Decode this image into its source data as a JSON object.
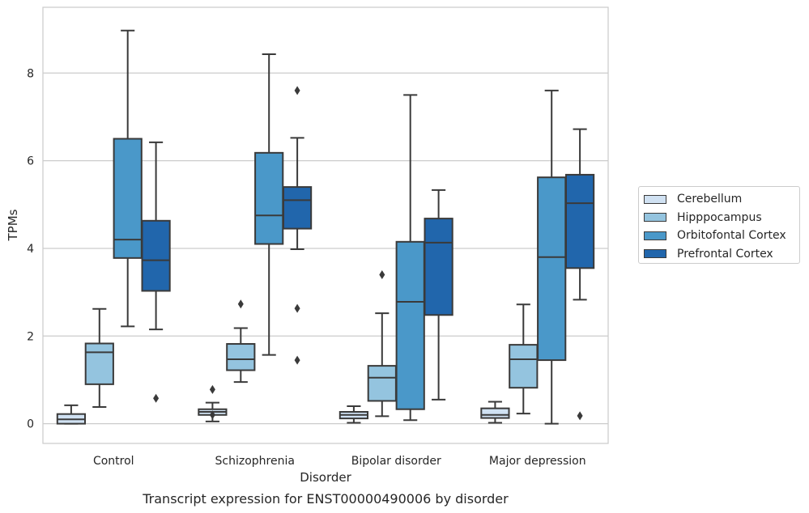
{
  "caption": "Transcript expression for ENST00000490006 by disorder",
  "chart_data": {
    "type": "box",
    "xlabel": "Disorder",
    "ylabel": "TPMs",
    "ylim": [
      -0.45,
      9.5
    ],
    "yticks": [
      0,
      2,
      4,
      6,
      8
    ],
    "grid": "horizontal",
    "legend_position": "right",
    "categories": [
      "Control",
      "Schizophrenia",
      "Bipolar disorder",
      "Major depression"
    ],
    "series": [
      {
        "name": "Cerebellum",
        "color": "#d0e1f2",
        "boxes": [
          {
            "whisker_low": 0.0,
            "q1": 0.0,
            "median": 0.1,
            "q3": 0.22,
            "whisker_high": 0.42,
            "outliers": []
          },
          {
            "whisker_low": 0.05,
            "q1": 0.2,
            "median": 0.27,
            "q3": 0.33,
            "whisker_high": 0.48,
            "outliers": [
              0.78,
              0.2
            ]
          },
          {
            "whisker_low": 0.02,
            "q1": 0.12,
            "median": 0.2,
            "q3": 0.27,
            "whisker_high": 0.4,
            "outliers": []
          },
          {
            "whisker_low": 0.02,
            "q1": 0.13,
            "median": 0.2,
            "q3": 0.35,
            "whisker_high": 0.5,
            "outliers": []
          }
        ]
      },
      {
        "name": "Hipppocampus",
        "color": "#94c4df",
        "boxes": [
          {
            "whisker_low": 0.38,
            "q1": 0.9,
            "median": 1.63,
            "q3": 1.83,
            "whisker_high": 2.62,
            "outliers": []
          },
          {
            "whisker_low": 0.95,
            "q1": 1.22,
            "median": 1.47,
            "q3": 1.82,
            "whisker_high": 2.18,
            "outliers": [
              2.73
            ]
          },
          {
            "whisker_low": 0.17,
            "q1": 0.52,
            "median": 1.05,
            "q3": 1.32,
            "whisker_high": 2.52,
            "outliers": [
              3.4
            ]
          },
          {
            "whisker_low": 0.23,
            "q1": 0.82,
            "median": 1.47,
            "q3": 1.8,
            "whisker_high": 2.72,
            "outliers": []
          }
        ]
      },
      {
        "name": "Orbitofontal Cortex",
        "color": "#4a98c9",
        "boxes": [
          {
            "whisker_low": 2.22,
            "q1": 3.78,
            "median": 4.2,
            "q3": 6.5,
            "whisker_high": 8.97,
            "outliers": []
          },
          {
            "whisker_low": 1.57,
            "q1": 4.1,
            "median": 4.75,
            "q3": 6.18,
            "whisker_high": 8.43,
            "outliers": []
          },
          {
            "whisker_low": 0.08,
            "q1": 0.33,
            "median": 2.78,
            "q3": 4.15,
            "whisker_high": 7.5,
            "outliers": []
          },
          {
            "whisker_low": 0.0,
            "q1": 1.45,
            "median": 3.8,
            "q3": 5.62,
            "whisker_high": 7.6,
            "outliers": []
          }
        ]
      },
      {
        "name": "Prefrontal Cortex",
        "color": "#2166ac",
        "boxes": [
          {
            "whisker_low": 2.15,
            "q1": 3.03,
            "median": 3.73,
            "q3": 4.63,
            "whisker_high": 6.42,
            "outliers": [
              0.58
            ]
          },
          {
            "whisker_low": 3.98,
            "q1": 4.45,
            "median": 5.1,
            "q3": 5.4,
            "whisker_high": 6.52,
            "outliers": [
              7.6,
              2.63,
              1.45
            ]
          },
          {
            "whisker_low": 0.55,
            "q1": 2.48,
            "median": 4.13,
            "q3": 4.68,
            "whisker_high": 5.33,
            "outliers": []
          },
          {
            "whisker_low": 2.83,
            "q1": 3.55,
            "median": 5.03,
            "q3": 5.68,
            "whisker_high": 6.72,
            "outliers": [
              0.18
            ]
          }
        ]
      }
    ]
  }
}
